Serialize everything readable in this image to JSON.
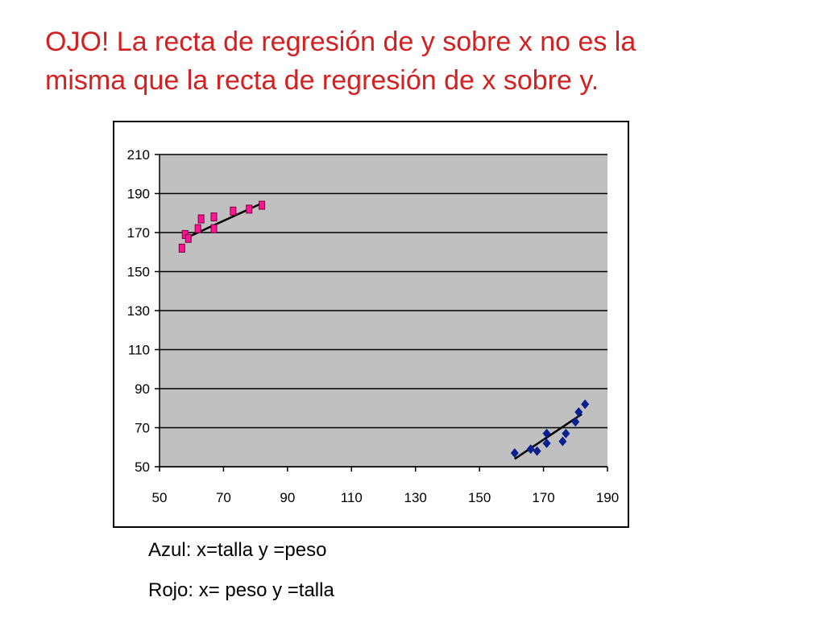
{
  "slide": {
    "title_line1": "OJO! La recta de regresión de y sobre x no es la",
    "title_line2": "misma que la recta de regresión de x sobre y.",
    "note_blue": "Azul: x=talla y =peso",
    "note_red": "Rojo: x= peso y =talla"
  },
  "colors": {
    "title": "#d42020",
    "plot_bg": "#c0c0c0",
    "grid": "#000000",
    "blue_series": "#0a1f8f",
    "red_series": "#ff1493",
    "trend": "#000000"
  },
  "chart_data": {
    "type": "scatter",
    "title": "",
    "xlabel": "",
    "ylabel": "",
    "xlim": [
      50,
      190
    ],
    "ylim": [
      50,
      210
    ],
    "x_ticks": [
      "50",
      "70",
      "90",
      "110",
      "130",
      "150",
      "170",
      "190"
    ],
    "y_ticks": [
      "50",
      "70",
      "90",
      "110",
      "130",
      "150",
      "170",
      "190",
      "210"
    ],
    "grid": true,
    "legend": "none",
    "series": [
      {
        "marker": "square",
        "color": "#ff1493",
        "points": [
          [
            57,
            162
          ],
          [
            58,
            169
          ],
          [
            59,
            167
          ],
          [
            62,
            172
          ],
          [
            63,
            177
          ],
          [
            67,
            172
          ],
          [
            67,
            178
          ],
          [
            73,
            181
          ],
          [
            78,
            182
          ],
          [
            82,
            184
          ]
        ],
        "trendline": [
          [
            58,
            167
          ],
          [
            82,
            185
          ]
        ]
      },
      {
        "marker": "diamond",
        "color": "#0a1f8f",
        "points": [
          [
            161,
            57
          ],
          [
            166,
            59
          ],
          [
            168,
            58
          ],
          [
            171,
            62
          ],
          [
            171,
            67
          ],
          [
            176,
            63
          ],
          [
            177,
            67
          ],
          [
            180,
            73
          ],
          [
            181,
            78
          ],
          [
            183,
            82
          ]
        ],
        "trendline": [
          [
            161,
            54
          ],
          [
            182,
            77
          ]
        ]
      }
    ]
  }
}
